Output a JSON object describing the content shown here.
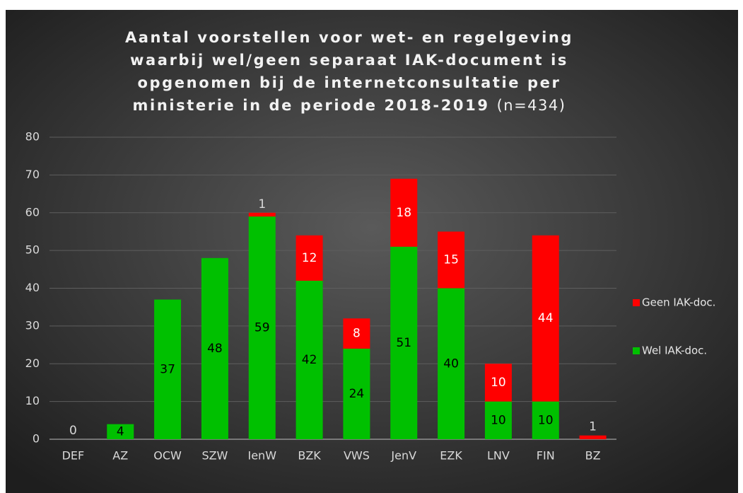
{
  "chart_data": {
    "type": "stacked_bar",
    "title": [
      "Aantal voorstellen voor wet- en regelgeving",
      "waarbij wel/geen separaat IAK-document is",
      "opgenomen bij de internetconsultatie per",
      "ministerie in de periode 2018-2019"
    ],
    "subtitle": "(n=434)",
    "categories": [
      "DEF",
      "AZ",
      "OCW",
      "SZW",
      "IenW",
      "BZK",
      "VWS",
      "JenV",
      "EZK",
      "LNV",
      "FIN",
      "BZ"
    ],
    "series": [
      {
        "name": "Wel IAK-doc.",
        "color": "#00c000",
        "values": [
          0,
          4,
          37,
          48,
          59,
          42,
          24,
          51,
          40,
          10,
          10,
          0
        ],
        "value_labels": [
          "0",
          "4",
          "37",
          "48",
          "59",
          "42",
          "24",
          "51",
          "40",
          "10",
          "10",
          null
        ]
      },
      {
        "name": "Geen IAK-doc.",
        "color": "#ff0000",
        "values": [
          0,
          0,
          0,
          0,
          1,
          12,
          8,
          18,
          15,
          10,
          44,
          1
        ],
        "value_labels": [
          null,
          null,
          null,
          null,
          "1",
          "12",
          "8",
          "18",
          "15",
          "10",
          "44",
          "1"
        ]
      }
    ],
    "ylim": [
      0,
      80
    ],
    "yticks": [
      0,
      10,
      20,
      30,
      40,
      50,
      60,
      70,
      80
    ],
    "grid": true,
    "legend": "right"
  }
}
